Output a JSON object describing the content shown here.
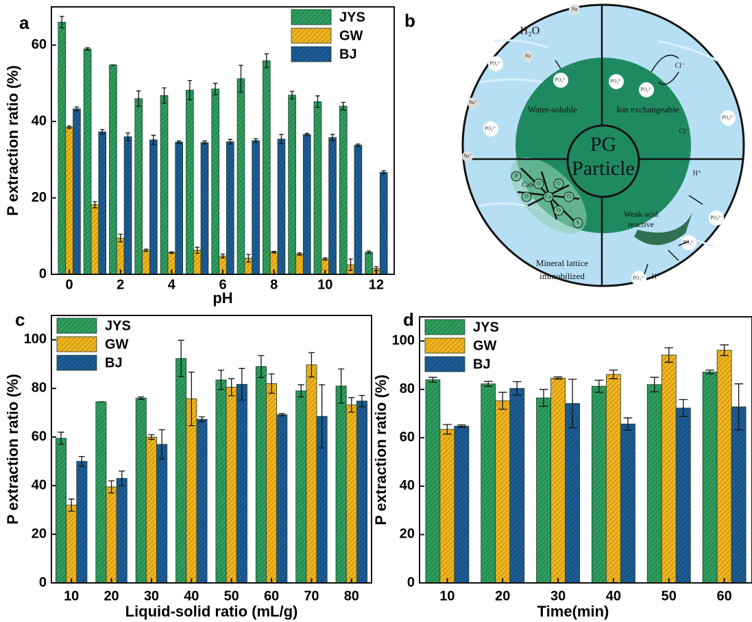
{
  "chart_data": [
    {
      "type": "bar",
      "panel_label": "a",
      "xlabel": "pH",
      "ylabel": "P extraction ratio (%)",
      "x": [
        0,
        1,
        2,
        3,
        4,
        5,
        6,
        7,
        8,
        9,
        10,
        11,
        12
      ],
      "xlim": [
        -0.7,
        12.7
      ],
      "xticks": [
        0,
        2,
        4,
        6,
        8,
        10,
        12
      ],
      "ylim": [
        0,
        70
      ],
      "yticks": [
        0,
        20,
        40,
        60
      ],
      "legend": "upper right",
      "grid": false,
      "series": [
        {
          "name": "JYS",
          "color": "#2e9e5e",
          "values": [
            66,
            59,
            54.8,
            46,
            46.8,
            48.2,
            48.5,
            51.2,
            55.9,
            46.9,
            45.2,
            44,
            5.8
          ],
          "errors": [
            1.5,
            0.3,
            0,
            2,
            2,
            2.5,
            1.5,
            3.5,
            1.8,
            1,
            1.5,
            1,
            0.3
          ]
        },
        {
          "name": "GW",
          "color": "#f2b51f",
          "values": [
            38.5,
            18.2,
            9.5,
            6.3,
            5.7,
            6.3,
            4.8,
            4.2,
            5.8,
            5.3,
            4,
            2.5,
            1.5
          ],
          "errors": [
            0.3,
            0.8,
            1,
            0.3,
            0.2,
            0.8,
            0.5,
            1,
            0.2,
            0.3,
            0.3,
            1.5,
            0.5
          ]
        },
        {
          "name": "BJ",
          "color": "#1d5c96",
          "values": [
            43.3,
            37.3,
            36,
            35.2,
            34.6,
            34.5,
            34.7,
            35,
            35.4,
            36.6,
            35.8,
            33.8,
            26.7
          ],
          "errors": [
            0.5,
            0.6,
            1,
            1.2,
            0.3,
            0.4,
            0.6,
            0.5,
            1.2,
            0.3,
            0.8,
            0.3,
            0.4
          ]
        }
      ]
    },
    {
      "type": "bar",
      "panel_label": "c",
      "xlabel": "Liquid-solid ratio (mL/g)",
      "ylabel": "P extraction ratio (%)",
      "categories": [
        "10",
        "20",
        "30",
        "40",
        "50",
        "60",
        "70",
        "80"
      ],
      "ylim": [
        0,
        110
      ],
      "yticks": [
        0,
        20,
        40,
        60,
        80,
        100
      ],
      "legend": "upper left",
      "grid": false,
      "series": [
        {
          "name": "JYS",
          "color": "#2e9e5e",
          "values": [
            59.5,
            74.5,
            76,
            92.3,
            83.5,
            89,
            79,
            81
          ],
          "errors": [
            2.5,
            0,
            0.5,
            7.5,
            4,
            4.5,
            2.5,
            7
          ]
        },
        {
          "name": "GW",
          "color": "#f2b51f",
          "values": [
            32,
            39.5,
            60,
            75.7,
            80.5,
            82,
            89.7,
            73.2
          ],
          "errors": [
            2.5,
            2.5,
            1,
            11,
            3.5,
            4,
            5,
            3
          ]
        },
        {
          "name": "BJ",
          "color": "#1d5c96",
          "values": [
            50,
            43,
            57,
            67.3,
            81.7,
            69.2,
            68.5,
            74.8
          ],
          "errors": [
            2,
            3,
            6,
            1,
            6.5,
            0.5,
            13,
            2.3
          ]
        }
      ]
    },
    {
      "type": "bar",
      "panel_label": "d",
      "xlabel": "Time(min)",
      "ylabel": "P extraction ratio (%)",
      "categories": [
        "10",
        "20",
        "30",
        "40",
        "50",
        "60"
      ],
      "ylim": [
        0,
        110
      ],
      "yticks": [
        0,
        20,
        40,
        60,
        80,
        100
      ],
      "legend": "upper left",
      "grid": false,
      "series": [
        {
          "name": "JYS",
          "color": "#2e9e5e",
          "values": [
            84,
            82.3,
            76.5,
            81.3,
            82,
            87.2
          ],
          "errors": [
            1,
            1,
            3.5,
            2.5,
            3,
            0.8
          ]
        },
        {
          "name": "GW",
          "color": "#f2b51f",
          "values": [
            63.5,
            75.3,
            84.7,
            86.2,
            94.2,
            96.2
          ],
          "errors": [
            2,
            3.5,
            0.5,
            1.8,
            3,
            2.2
          ]
        },
        {
          "name": "BJ",
          "color": "#1d5c96",
          "values": [
            64.8,
            80.4,
            74.2,
            65.7,
            72.3,
            72.8
          ],
          "errors": [
            0.5,
            2.8,
            10,
            2.5,
            3.5,
            9.5
          ]
        }
      ]
    }
  ],
  "diagram": {
    "panel_label": "b",
    "center": [
      "PG",
      "Particle"
    ],
    "regions": {
      "water_soluble": "Water-soluble",
      "ion_exchangeable": "Ion exchangeable",
      "weak_acid": [
        "Weak acid",
        "reactive"
      ],
      "mineral": [
        "Mineral lattice",
        "immobilized"
      ]
    },
    "labels": [
      "Na",
      "H₂O",
      "Na",
      "PO₄³⁻",
      "Na⁺",
      "PO₄³⁻",
      "Na⁺",
      "PO₄³⁻",
      "PO₄³⁻",
      "PO₄³⁻",
      "Cl⁻",
      "Cl⁻",
      "PO₄³⁻",
      "H⁺",
      "PO₄³⁻",
      "PO₄³⁻",
      "H⁺",
      "PO₄³⁻",
      "CaSO₄"
    ],
    "lattice": [
      "P",
      "O",
      "O",
      "Ca",
      "O",
      "O",
      "O",
      "S"
    ]
  }
}
